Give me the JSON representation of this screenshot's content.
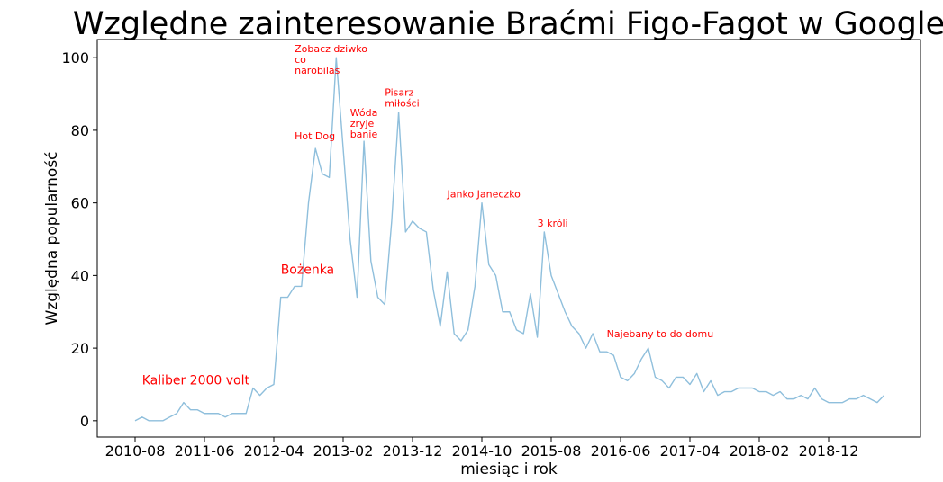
{
  "chart_data": {
    "type": "line",
    "title": "Względne zainteresowanie Braćmi Figo-Fagot w Google",
    "xlabel": "miesiąc i rok",
    "ylabel": "Względna popularność",
    "x_start": "2010-08",
    "x_ticks": [
      "2010-08",
      "2011-06",
      "2012-04",
      "2013-02",
      "2013-12",
      "2014-10",
      "2015-08",
      "2016-06",
      "2017-04",
      "2018-02",
      "2018-12"
    ],
    "y_ticks": [
      0,
      20,
      40,
      60,
      80,
      100
    ],
    "ylim": [
      -4.5,
      105
    ],
    "grid": false,
    "line_color": "#8fbfdc",
    "annotation_color": "#ff0000",
    "series": [
      {
        "values": [
          0,
          1,
          0,
          0,
          0,
          1,
          2,
          5,
          3,
          3,
          2,
          2,
          2,
          1,
          2,
          2,
          2,
          9,
          7,
          9,
          10,
          34,
          34,
          37,
          37,
          60,
          75,
          68,
          67,
          100,
          75,
          50,
          34,
          77,
          44,
          34,
          32,
          55,
          85,
          52,
          55,
          53,
          52,
          36,
          26,
          41,
          24,
          22,
          25,
          37,
          60,
          43,
          40,
          30,
          30,
          25,
          24,
          35,
          23,
          52,
          40,
          35,
          30,
          26,
          24,
          20,
          24,
          19,
          19,
          18,
          12,
          11,
          13,
          17,
          20,
          12,
          11,
          9,
          12,
          12,
          10,
          13,
          8,
          11,
          7,
          8,
          8,
          9,
          9,
          9,
          8,
          8,
          7,
          8,
          6,
          6,
          7,
          6,
          9,
          6,
          5,
          5,
          5,
          6,
          6,
          7,
          6,
          5,
          7
        ]
      }
    ],
    "annotations": [
      {
        "text": "Kaliber 2000 volt",
        "month": "2010-09",
        "y": 10.0,
        "size": "large"
      },
      {
        "text": "Bożenka",
        "month": "2012-05",
        "y": 40.5,
        "size": "large"
      },
      {
        "text": "Hot Dog",
        "month": "2012-07",
        "y": 77.5,
        "size": "small"
      },
      {
        "text": "Zobacz dziwko\nco\nnarobilas",
        "month": "2012-07",
        "y": 101.5,
        "size": "small"
      },
      {
        "text": "Wóda\nzryje\nbanie",
        "month": "2013-03",
        "y": 84.0,
        "size": "small"
      },
      {
        "text": "Pisarz\nmiłości",
        "month": "2013-08",
        "y": 89.5,
        "size": "small"
      },
      {
        "text": "Janko Janeczko",
        "month": "2014-05",
        "y": 61.5,
        "size": "small"
      },
      {
        "text": "3 króli",
        "month": "2015-06",
        "y": 53.5,
        "size": "small"
      },
      {
        "text": "Najebany to do domu",
        "month": "2016-04",
        "y": 23.0,
        "size": "small"
      }
    ]
  }
}
